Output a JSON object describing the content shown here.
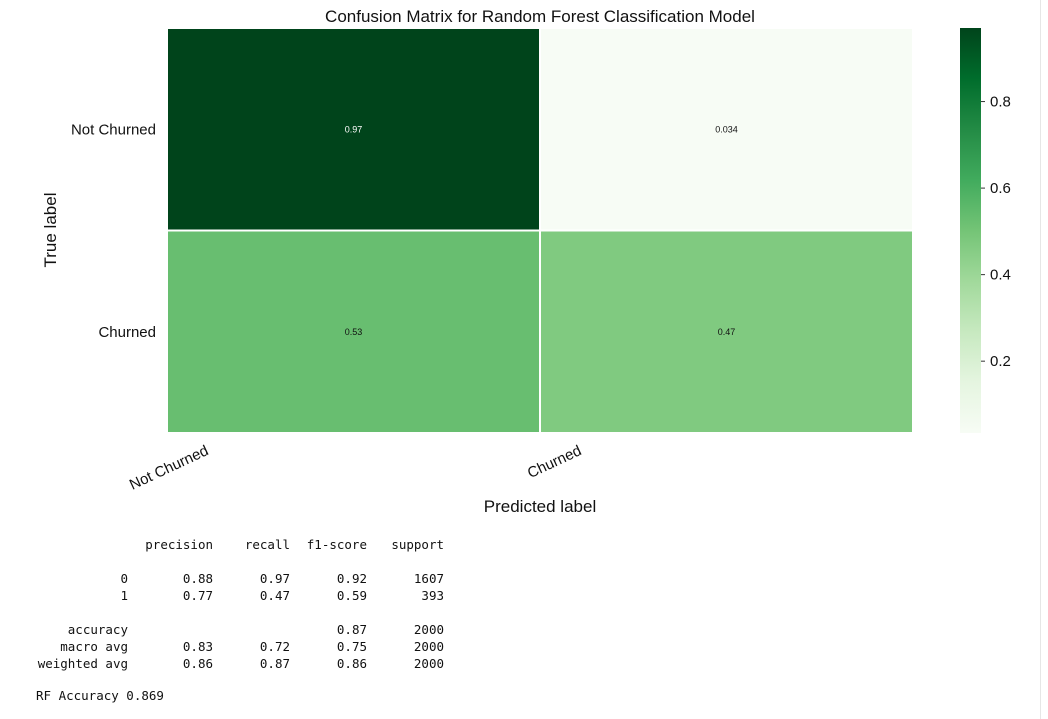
{
  "chart_data": {
    "type": "heatmap",
    "title": "Confusion Matrix for Random Forest Classification Model",
    "xlabel": "Predicted label",
    "ylabel": "True label",
    "x_categories": [
      "Not Churned",
      "Churned"
    ],
    "y_categories": [
      "Not Churned",
      "Churned"
    ],
    "values": [
      [
        0.97,
        0.034
      ],
      [
        0.53,
        0.47
      ]
    ],
    "annotations": [
      [
        "0.97",
        "0.034"
      ],
      [
        "0.53",
        "0.47"
      ]
    ],
    "colormap": "Greens",
    "colorbar": {
      "range": [
        0.034,
        0.97
      ],
      "ticks": [
        0.2,
        0.4,
        0.6,
        0.8
      ],
      "tick_labels": [
        "0.2",
        "0.4",
        "0.6",
        "0.8"
      ]
    }
  },
  "report": {
    "header": [
      "",
      "precision",
      "recall",
      "f1-score",
      "support"
    ],
    "rows": [
      [
        "0",
        "0.88",
        "0.97",
        "0.92",
        "1607"
      ],
      [
        "1",
        "0.77",
        "0.47",
        "0.59",
        "393"
      ],
      [
        "",
        "",
        "",
        "",
        ""
      ],
      [
        "accuracy",
        "",
        "",
        "0.87",
        "2000"
      ],
      [
        "macro avg",
        "0.83",
        "0.72",
        "0.75",
        "2000"
      ],
      [
        "weighted avg",
        "0.86",
        "0.87",
        "0.86",
        "2000"
      ]
    ]
  },
  "accuracy_line": "RF Accuracy 0.869"
}
